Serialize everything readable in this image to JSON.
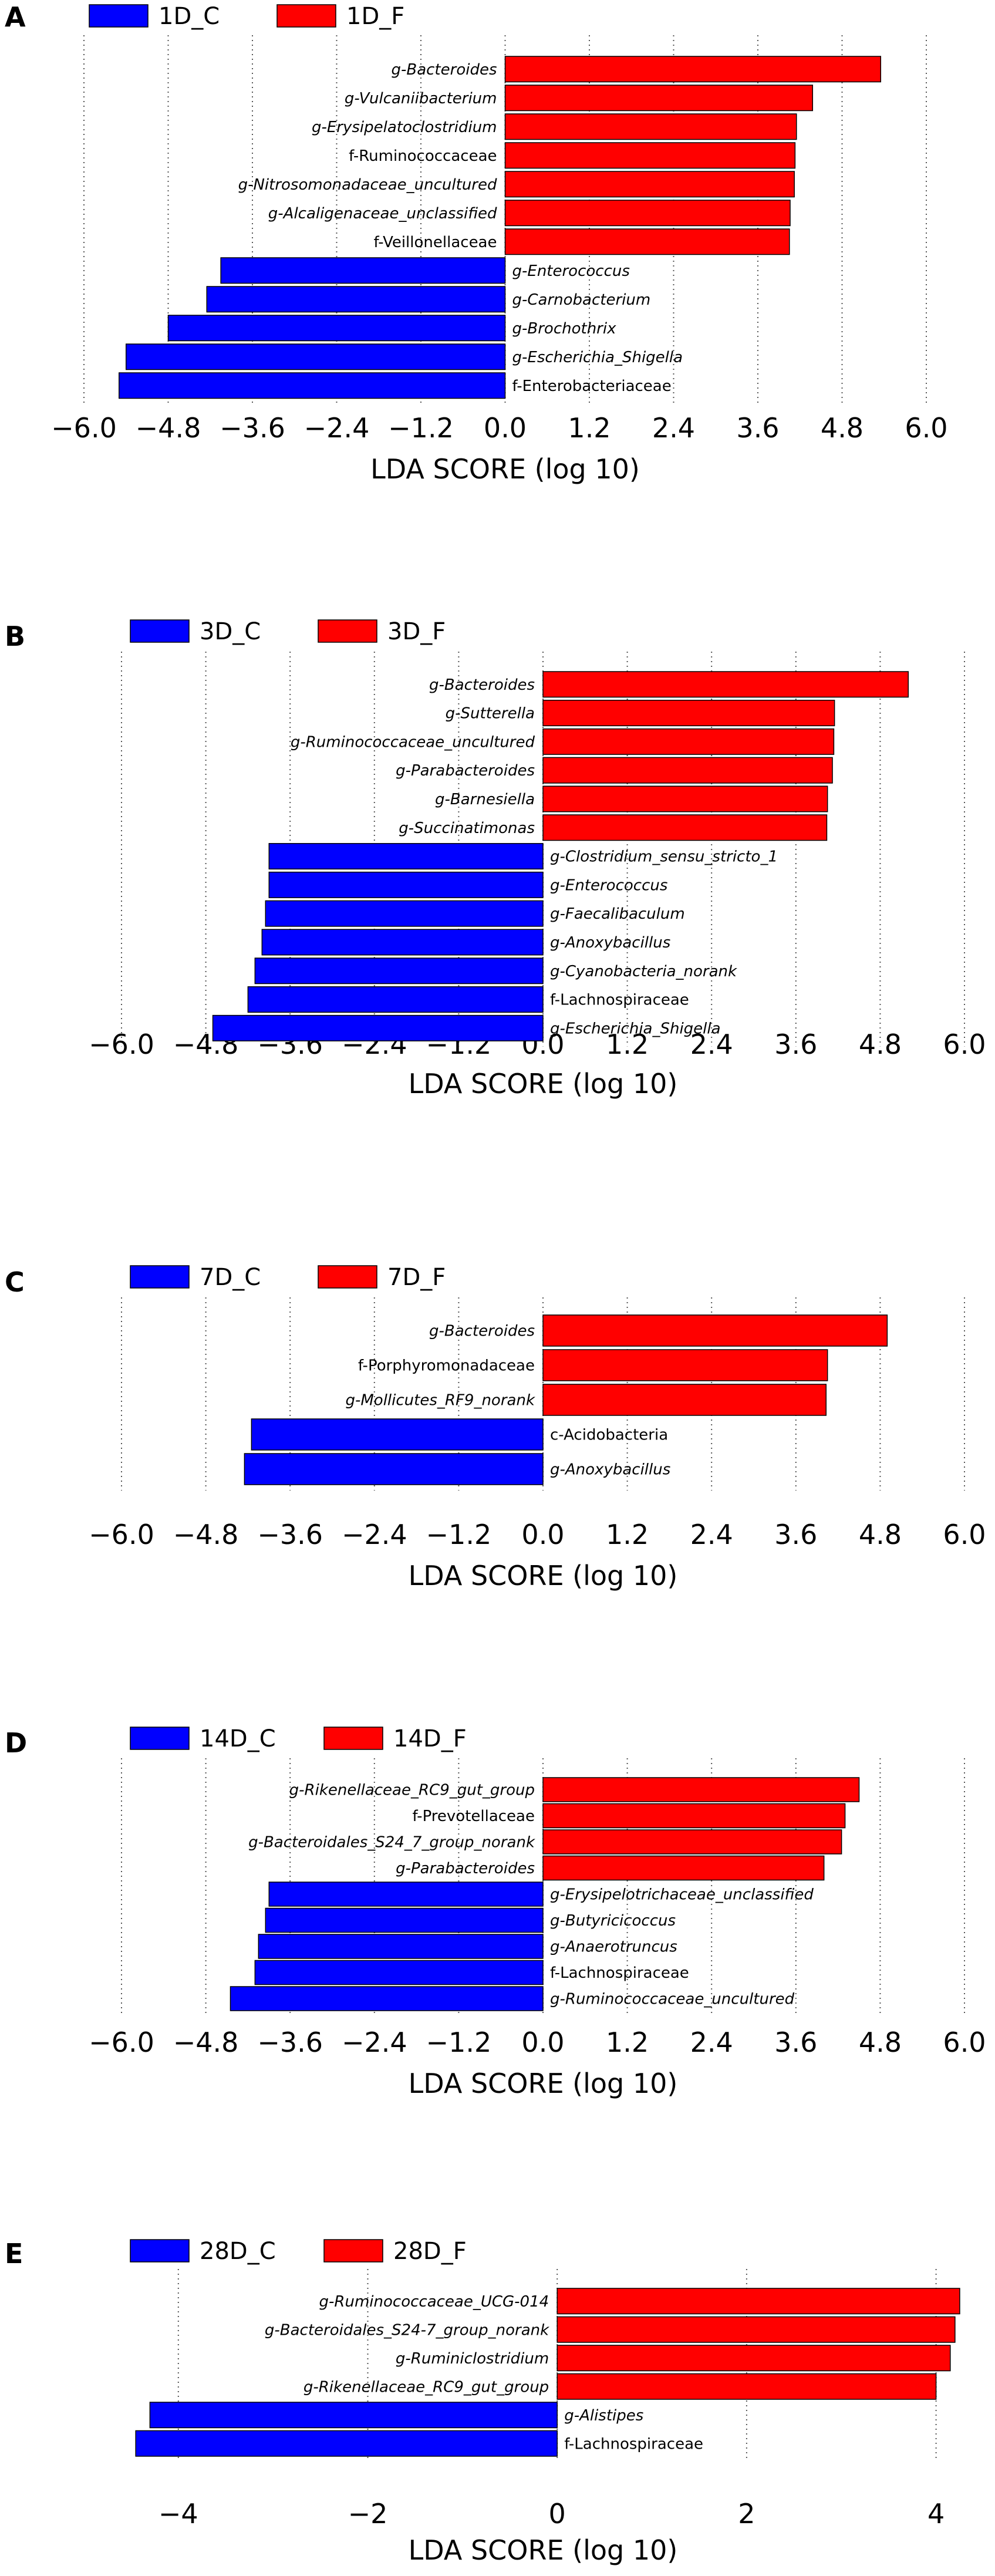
{
  "chart_data": [
    {
      "type": "bar",
      "orientation": "horizontal",
      "panel_label": "A",
      "legend": [
        {
          "name": "1D_C",
          "color": "#0000ff"
        },
        {
          "name": "1D_F",
          "color": "#ff0000"
        }
      ],
      "xlabel": "LDA SCORE (log 10)",
      "xlim": [
        -6.0,
        6.0
      ],
      "xticks": [
        -6.0,
        -4.8,
        -3.6,
        -2.4,
        -1.2,
        0.0,
        1.2,
        2.4,
        3.6,
        4.8,
        6.0
      ],
      "xtick_labels": [
        "−6.0",
        "−4.8",
        "−3.6",
        "−2.4",
        "−1.2",
        "0.0",
        "1.2",
        "2.4",
        "3.6",
        "4.8",
        "6.0"
      ],
      "bars": [
        {
          "label": "g-Bacteroides",
          "value": 5.35,
          "group": "1D_F",
          "italic": true
        },
        {
          "label": "g-Vulcaniibacterium",
          "value": 4.38,
          "group": "1D_F",
          "italic": true
        },
        {
          "label": "g-Erysipelatoclostridium",
          "value": 4.15,
          "group": "1D_F",
          "italic": true
        },
        {
          "label": "f-Ruminococcaceae",
          "value": 4.13,
          "group": "1D_F",
          "italic": false
        },
        {
          "label": "g-Nitrosomonadaceae_uncultured",
          "value": 4.12,
          "group": "1D_F",
          "italic": true
        },
        {
          "label": "g-Alcaligenaceae_unclassified",
          "value": 4.06,
          "group": "1D_F",
          "italic": true
        },
        {
          "label": "f-Veillonellaceae",
          "value": 4.05,
          "group": "1D_F",
          "italic": false
        },
        {
          "label": "g-Enterococcus",
          "value": -4.05,
          "group": "1D_C",
          "italic": true
        },
        {
          "label": "g-Carnobacterium",
          "value": -4.25,
          "group": "1D_C",
          "italic": true
        },
        {
          "label": "g-Brochothrix",
          "value": -4.8,
          "group": "1D_C",
          "italic": true
        },
        {
          "label": "g-Escherichia_Shigella",
          "value": -5.4,
          "group": "1D_C",
          "italic": true
        },
        {
          "label": "f-Enterobacteriaceae",
          "value": -5.5,
          "group": "1D_C",
          "italic": false
        }
      ]
    },
    {
      "type": "bar",
      "orientation": "horizontal",
      "panel_label": "B",
      "legend": [
        {
          "name": "3D_C",
          "color": "#0000ff"
        },
        {
          "name": "3D_F",
          "color": "#ff0000"
        }
      ],
      "xlabel": "LDA SCORE (log 10)",
      "xlim": [
        -6.0,
        6.0
      ],
      "xticks": [
        -6.0,
        -4.8,
        -3.6,
        -2.4,
        -1.2,
        0.0,
        1.2,
        2.4,
        3.6,
        4.8,
        6.0
      ],
      "xtick_labels": [
        "−6.0",
        "−4.8",
        "−3.6",
        "−2.4",
        "−1.2",
        "0.0",
        "1.2",
        "2.4",
        "3.6",
        "4.8",
        "6.0"
      ],
      "bars": [
        {
          "label": "g-Bacteroides",
          "value": 5.2,
          "group": "3D_F",
          "italic": true
        },
        {
          "label": "g-Sutterella",
          "value": 4.15,
          "group": "3D_F",
          "italic": true
        },
        {
          "label": "g-Ruminococcaceae_uncultured",
          "value": 4.14,
          "group": "3D_F",
          "italic": true
        },
        {
          "label": "g-Parabacteroides",
          "value": 4.12,
          "group": "3D_F",
          "italic": true
        },
        {
          "label": "g-Barnesiella",
          "value": 4.05,
          "group": "3D_F",
          "italic": true
        },
        {
          "label": "g-Succinatimonas",
          "value": 4.04,
          "group": "3D_F",
          "italic": true
        },
        {
          "label": "g-Clostridium_sensu_stricto_1",
          "value": -3.9,
          "group": "3D_C",
          "italic": true
        },
        {
          "label": "g-Enterococcus",
          "value": -3.9,
          "group": "3D_C",
          "italic": true
        },
        {
          "label": "g-Faecalibaculum",
          "value": -3.95,
          "group": "3D_C",
          "italic": true
        },
        {
          "label": "g-Anoxybacillus",
          "value": -4.0,
          "group": "3D_C",
          "italic": true
        },
        {
          "label": "g-Cyanobacteria_norank",
          "value": -4.1,
          "group": "3D_C",
          "italic": true
        },
        {
          "label": "f-Lachnospiraceae",
          "value": -4.2,
          "group": "3D_C",
          "italic": false
        },
        {
          "label": "g-Escherichia_Shigella",
          "value": -4.7,
          "group": "3D_C",
          "italic": true
        }
      ]
    },
    {
      "type": "bar",
      "orientation": "horizontal",
      "panel_label": "C",
      "legend": [
        {
          "name": "7D_C",
          "color": "#0000ff"
        },
        {
          "name": "7D_F",
          "color": "#ff0000"
        }
      ],
      "xlabel": "LDA SCORE (log 10)",
      "xlim": [
        -6.0,
        6.0
      ],
      "xticks": [
        -6.0,
        -4.8,
        -3.6,
        -2.4,
        -1.2,
        0.0,
        1.2,
        2.4,
        3.6,
        4.8,
        6.0
      ],
      "xtick_labels": [
        "−6.0",
        "−4.8",
        "−3.6",
        "−2.4",
        "−1.2",
        "0.0",
        "1.2",
        "2.4",
        "3.6",
        "4.8",
        "6.0"
      ],
      "bars": [
        {
          "label": "g-Bacteroides",
          "value": 4.9,
          "group": "7D_F",
          "italic": true
        },
        {
          "label": "f-Porphyromonadaceae",
          "value": 4.05,
          "group": "7D_F",
          "italic": false
        },
        {
          "label": "g-Mollicutes_RF9_norank",
          "value": 4.03,
          "group": "7D_F",
          "italic": true
        },
        {
          "label": "c-Acidobacteria",
          "value": -4.15,
          "group": "7D_C",
          "italic": false
        },
        {
          "label": "g-Anoxybacillus",
          "value": -4.25,
          "group": "7D_C",
          "italic": true
        }
      ]
    },
    {
      "type": "bar",
      "orientation": "horizontal",
      "panel_label": "D",
      "legend": [
        {
          "name": "14D_C",
          "color": "#0000ff"
        },
        {
          "name": "14D_F",
          "color": "#ff0000"
        }
      ],
      "xlabel": "LDA SCORE (log 10)",
      "xlim": [
        -6.0,
        6.0
      ],
      "xticks": [
        -6.0,
        -4.8,
        -3.6,
        -2.4,
        -1.2,
        0.0,
        1.2,
        2.4,
        3.6,
        4.8,
        6.0
      ],
      "xtick_labels": [
        "−6.0",
        "−4.8",
        "−3.6",
        "−2.4",
        "−1.2",
        "0.0",
        "1.2",
        "2.4",
        "3.6",
        "4.8",
        "6.0"
      ],
      "bars": [
        {
          "label": "g-Rikenellaceae_RC9_gut_group",
          "value": 4.5,
          "group": "14D_F",
          "italic": true
        },
        {
          "label": "f-Prevotellaceae",
          "value": 4.3,
          "group": "14D_F",
          "italic": false
        },
        {
          "label": "g-Bacteroidales_S24_7_group_norank",
          "value": 4.25,
          "group": "14D_F",
          "italic": true
        },
        {
          "label": "g-Parabacteroides",
          "value": 4.0,
          "group": "14D_F",
          "italic": true
        },
        {
          "label": "g-Erysipelotrichaceae_unclassified",
          "value": -3.9,
          "group": "14D_C",
          "italic": true
        },
        {
          "label": "g-Butyricicoccus",
          "value": -3.95,
          "group": "14D_C",
          "italic": true
        },
        {
          "label": "g-Anaerotruncus",
          "value": -4.05,
          "group": "14D_C",
          "italic": true
        },
        {
          "label": "f-Lachnospiraceae",
          "value": -4.1,
          "group": "14D_C",
          "italic": false
        },
        {
          "label": "g-Ruminococcaceae_uncultured",
          "value": -4.45,
          "group": "14D_C",
          "italic": true
        }
      ]
    },
    {
      "type": "bar",
      "orientation": "horizontal",
      "panel_label": "E",
      "legend": [
        {
          "name": "28D_C",
          "color": "#0000ff"
        },
        {
          "name": "28D_F",
          "color": "#ff0000"
        }
      ],
      "xlabel": "LDA SCORE (log 10)",
      "xlim": [
        -4.6,
        4.3
      ],
      "xticks": [
        -4,
        -2,
        0,
        2,
        4
      ],
      "xtick_labels": [
        "−4",
        "−2",
        "0",
        "2",
        "4"
      ],
      "bars": [
        {
          "label": "g-Ruminococcaceae_UCG-014",
          "value": 4.25,
          "group": "28D_F",
          "italic": true
        },
        {
          "label": "g-Bacteroidales_S24-7_group_norank",
          "value": 4.2,
          "group": "28D_F",
          "italic": true
        },
        {
          "label": "g-Ruminiclostridium",
          "value": 4.15,
          "group": "28D_F",
          "italic": true
        },
        {
          "label": "g-Rikenellaceae_RC9_gut_group",
          "value": 4.0,
          "group": "28D_F",
          "italic": true
        },
        {
          "label": "g-Alistipes",
          "value": -4.3,
          "group": "28D_C",
          "italic": true
        },
        {
          "label": "f-Lachnospiraceae",
          "value": -4.45,
          "group": "28D_C",
          "italic": false
        }
      ]
    }
  ]
}
